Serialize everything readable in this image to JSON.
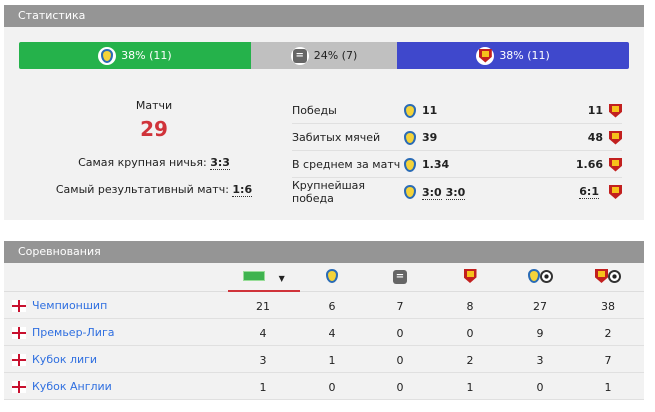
{
  "stats": {
    "title": "Статистика",
    "bar": [
      {
        "label": "38% (11)",
        "share": 38,
        "color": "#25b24b",
        "icon": "leeds-crest"
      },
      {
        "label": "24% (7)",
        "share": 24,
        "color": "#c0c0c0",
        "icon": "draw-icon"
      },
      {
        "label": "38% (11)",
        "share": 38,
        "color": "#3f48cc",
        "icon": "watford-crest"
      }
    ],
    "matches_label": "Матчи",
    "matches": "29",
    "biggest_draw_label": "Самая крупная ничья:",
    "biggest_draw": "3:3",
    "highest_scoring_label": "Самый результативный матч:",
    "highest_scoring": "1:6",
    "rows": [
      {
        "label": "Победы",
        "home": "11",
        "away": "11"
      },
      {
        "label": "Забитых мячей",
        "home": "39",
        "away": "48"
      },
      {
        "label": "В среднем за матч",
        "home": "1.34",
        "away": "1.66"
      },
      {
        "label": "Крупнейшая победа",
        "home": "3:0",
        "home2": "3:0",
        "away": "6:1"
      }
    ]
  },
  "competitions": {
    "title": "Соревнования",
    "columns": [
      "matches",
      "leeds-wins",
      "draws",
      "watford-wins",
      "leeds-goals",
      "watford-goals"
    ],
    "rows": [
      {
        "name": "Чемпионшип",
        "values": [
          "21",
          "6",
          "7",
          "8",
          "27",
          "38"
        ]
      },
      {
        "name": "Премьер-Лига",
        "values": [
          "4",
          "4",
          "0",
          "0",
          "9",
          "2"
        ]
      },
      {
        "name": "Кубок лиги",
        "values": [
          "3",
          "1",
          "0",
          "2",
          "3",
          "7"
        ]
      },
      {
        "name": "Кубок Англии",
        "values": [
          "1",
          "0",
          "0",
          "1",
          "0",
          "1"
        ]
      }
    ]
  }
}
